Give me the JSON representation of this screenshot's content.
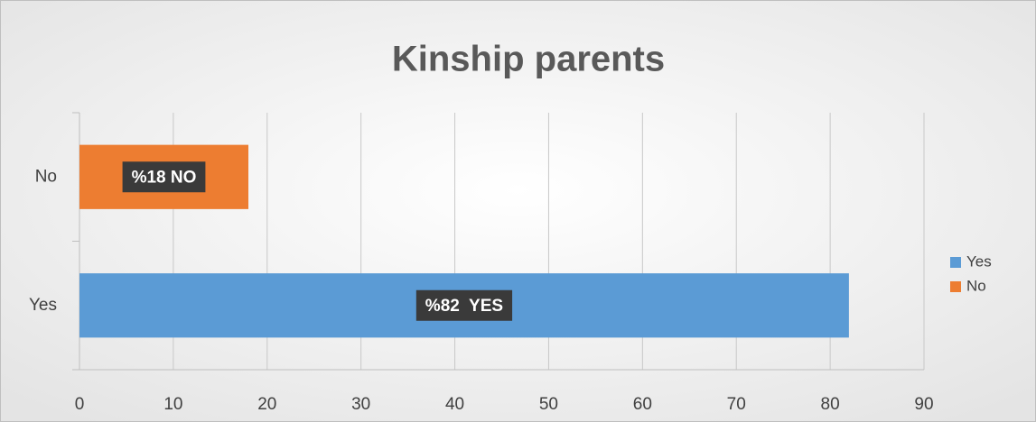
{
  "chart_data": {
    "type": "bar",
    "orientation": "horizontal",
    "title": "Kinship parents",
    "categories": [
      "Yes",
      "No"
    ],
    "values": [
      82,
      18
    ],
    "value_labels": [
      "%82  YES",
      "%18 NO"
    ],
    "colors": [
      "#5b9bd5",
      "#ed7d31"
    ],
    "xlim": [
      0,
      90
    ],
    "xticks": [
      0,
      10,
      20,
      30,
      40,
      50,
      60,
      70,
      80,
      90
    ],
    "grid": true,
    "legend": "right"
  }
}
